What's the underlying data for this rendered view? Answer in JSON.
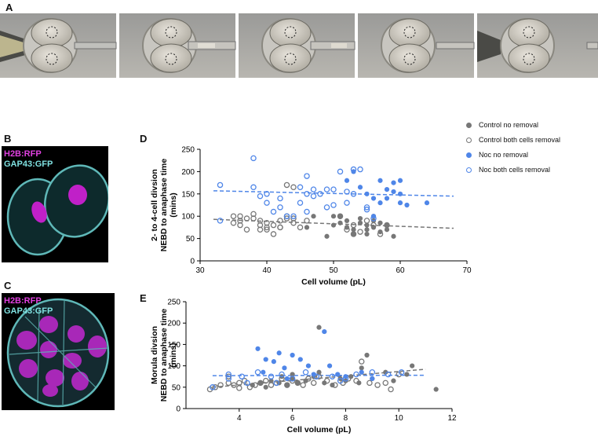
{
  "panels": {
    "A": "A",
    "B": "B",
    "C": "C",
    "D": "D",
    "E": "E"
  },
  "micrographs": {
    "B": {
      "label1": "H2B:RFP",
      "label2": "GAP43:GFP",
      "color1": "#e040e0",
      "color2": "#7fe0e0"
    },
    "C": {
      "label1": "H2B:RFP",
      "label2": "GAP43:GFP",
      "color1": "#e040e0",
      "color2": "#7fe0e0"
    }
  },
  "legend": [
    {
      "label": "Control no removal",
      "color": "#777777",
      "filled": true
    },
    {
      "label": "Control both cells removal",
      "color": "#777777",
      "filled": false
    },
    {
      "label": "Noc no removal",
      "color": "#4f86e8",
      "filled": true
    },
    {
      "label": "Noc both cells removal",
      "color": "#4f86e8",
      "filled": false
    }
  ],
  "chart_data": [
    {
      "type": "scatter",
      "panel": "D",
      "xlabel": "Cell volume (pL)",
      "ylabel": "2- to 4-cell divsion NEBD to anaphase time (mins)",
      "ylabel_lines": [
        "2- to 4-cell divsion",
        "NEBD to anaphase time",
        "(mins)"
      ],
      "xlim": [
        30,
        70
      ],
      "ylim": [
        0,
        250
      ],
      "xticks": [
        30,
        40,
        50,
        60,
        70
      ],
      "yticks": [
        0,
        50,
        100,
        150,
        200,
        250
      ],
      "series": [
        {
          "name": "Control no removal",
          "color": "#777777",
          "filled": true,
          "points": [
            [
              46,
              75
            ],
            [
              47,
              100
            ],
            [
              49,
              55
            ],
            [
              50,
              80
            ],
            [
              50,
              100
            ],
            [
              51,
              85
            ],
            [
              51,
              100
            ],
            [
              52,
              75
            ],
            [
              52,
              90
            ],
            [
              53,
              70
            ],
            [
              53,
              60
            ],
            [
              54,
              85
            ],
            [
              54,
              95
            ],
            [
              55,
              70
            ],
            [
              55,
              80
            ],
            [
              55,
              60
            ],
            [
              56,
              75
            ],
            [
              56,
              90
            ],
            [
              57,
              85
            ],
            [
              57,
              65
            ],
            [
              58,
              80
            ],
            [
              58,
              70
            ],
            [
              59,
              55
            ],
            [
              56,
              100
            ]
          ]
        },
        {
          "name": "Control both cells removal",
          "color": "#777777",
          "filled": false,
          "points": [
            [
              35,
              100
            ],
            [
              35,
              85
            ],
            [
              36,
              100
            ],
            [
              36,
              90
            ],
            [
              36,
              80
            ],
            [
              37,
              95
            ],
            [
              37,
              70
            ],
            [
              38,
              95
            ],
            [
              38,
              105
            ],
            [
              39,
              90
            ],
            [
              39,
              80
            ],
            [
              39,
              70
            ],
            [
              40,
              75
            ],
            [
              40,
              85
            ],
            [
              40,
              70
            ],
            [
              41,
              80
            ],
            [
              41,
              60
            ],
            [
              42,
              75
            ],
            [
              42,
              90
            ],
            [
              42,
              75
            ],
            [
              43,
              95
            ],
            [
              43,
              100
            ],
            [
              44,
              95
            ],
            [
              44,
              165
            ],
            [
              44,
              85
            ],
            [
              45,
              75
            ],
            [
              46,
              90
            ],
            [
              51,
              100
            ],
            [
              52,
              70
            ],
            [
              53,
              80
            ],
            [
              53,
              60
            ],
            [
              54,
              65
            ],
            [
              55,
              90
            ],
            [
              56,
              80
            ],
            [
              57,
              60
            ],
            [
              58,
              80
            ],
            [
              43,
              170
            ]
          ]
        },
        {
          "name": "Noc no removal",
          "color": "#4f86e8",
          "filled": true,
          "points": [
            [
              52,
              180
            ],
            [
              54,
              165
            ],
            [
              55,
              150
            ],
            [
              56,
              140
            ],
            [
              57,
              180
            ],
            [
              57,
              130
            ],
            [
              58,
              160
            ],
            [
              58,
              140
            ],
            [
              59,
              175
            ],
            [
              59,
              155
            ],
            [
              60,
              150
            ],
            [
              60,
              130
            ],
            [
              60,
              180
            ],
            [
              61,
              125
            ],
            [
              53,
              200
            ],
            [
              56,
              100
            ],
            [
              64,
              130
            ]
          ]
        },
        {
          "name": "Noc both cells removal",
          "color": "#4f86e8",
          "filled": false,
          "points": [
            [
              33,
              170
            ],
            [
              33,
              90
            ],
            [
              38,
              230
            ],
            [
              38,
              165
            ],
            [
              39,
              145
            ],
            [
              40,
              150
            ],
            [
              40,
              130
            ],
            [
              41,
              110
            ],
            [
              42,
              140
            ],
            [
              42,
              120
            ],
            [
              43,
              100
            ],
            [
              44,
              100
            ],
            [
              45,
              130
            ],
            [
              45,
              165
            ],
            [
              46,
              150
            ],
            [
              46,
              190
            ],
            [
              47,
              160
            ],
            [
              47,
              145
            ],
            [
              48,
              150
            ],
            [
              49,
              120
            ],
            [
              49,
              160
            ],
            [
              50,
              160
            ],
            [
              50,
              125
            ],
            [
              51,
              200
            ],
            [
              52,
              155
            ],
            [
              52,
              130
            ],
            [
              53,
              150
            ],
            [
              53,
              205
            ],
            [
              54,
              205
            ],
            [
              55,
              120
            ],
            [
              55,
              115
            ],
            [
              56,
              95
            ],
            [
              46,
              110
            ]
          ]
        }
      ],
      "trendlines": [
        {
          "color": "#4f86e8",
          "x": [
            32,
            68
          ],
          "y": [
            157,
            145
          ]
        },
        {
          "color": "#777777",
          "x": [
            32,
            68
          ],
          "y": [
            93,
            73
          ]
        }
      ]
    },
    {
      "type": "scatter",
      "panel": "E",
      "xlabel": "Cell volume (pL)",
      "ylabel": "Morula divsion NEBD to anaphase time (mins)",
      "ylabel_lines": [
        "Morula divsion",
        "NEBD to anaphase time",
        "(mins)"
      ],
      "xlim": [
        2,
        12
      ],
      "ylim": [
        0,
        250
      ],
      "xticks": [
        4,
        6,
        8,
        10,
        12
      ],
      "yticks": [
        0,
        50,
        100,
        150,
        200,
        250
      ],
      "series": [
        {
          "name": "Control no removal",
          "color": "#777777",
          "filled": true,
          "points": [
            [
              4.5,
              55
            ],
            [
              4.8,
              60
            ],
            [
              5,
              50
            ],
            [
              5.2,
              65
            ],
            [
              5.5,
              60
            ],
            [
              5.8,
              55
            ],
            [
              6,
              70
            ],
            [
              6.2,
              60
            ],
            [
              6.5,
              65
            ],
            [
              6.8,
              75
            ],
            [
              7,
              190
            ],
            [
              7,
              85
            ],
            [
              7.2,
              60
            ],
            [
              7.5,
              55
            ],
            [
              7.8,
              70
            ],
            [
              8,
              65
            ],
            [
              8.2,
              75
            ],
            [
              8.5,
              60
            ],
            [
              8.8,
              125
            ],
            [
              9,
              70
            ],
            [
              9.5,
              85
            ],
            [
              9.8,
              65
            ],
            [
              10.3,
              80
            ],
            [
              10.5,
              100
            ],
            [
              11.4,
              45
            ],
            [
              6,
              80
            ],
            [
              5.6,
              75
            ],
            [
              8.6,
              95
            ]
          ]
        },
        {
          "name": "Control both cells removal",
          "color": "#777777",
          "filled": false,
          "points": [
            [
              2.9,
              45
            ],
            [
              3.1,
              50
            ],
            [
              3.3,
              55
            ],
            [
              3.6,
              60
            ],
            [
              3.8,
              55
            ],
            [
              4,
              60
            ],
            [
              4.2,
              65
            ],
            [
              4.4,
              50
            ],
            [
              4.6,
              55
            ],
            [
              4.8,
              60
            ],
            [
              5,
              65
            ],
            [
              5.2,
              55
            ],
            [
              5.4,
              60
            ],
            [
              5.6,
              70
            ],
            [
              5.8,
              55
            ],
            [
              6,
              65
            ],
            [
              6.2,
              60
            ],
            [
              6.4,
              55
            ],
            [
              6.6,
              70
            ],
            [
              6.8,
              60
            ],
            [
              7,
              75
            ],
            [
              7.3,
              65
            ],
            [
              7.6,
              55
            ],
            [
              7.9,
              60
            ],
            [
              8.1,
              70
            ],
            [
              8.4,
              65
            ],
            [
              8.6,
              110
            ],
            [
              8.9,
              60
            ],
            [
              9.2,
              55
            ],
            [
              9.5,
              60
            ],
            [
              9.7,
              45
            ],
            [
              10,
              80
            ],
            [
              3.6,
              75
            ],
            [
              4,
              48
            ]
          ]
        },
        {
          "name": "Noc no removal",
          "color": "#4f86e8",
          "filled": true,
          "points": [
            [
              4.7,
              140
            ],
            [
              5,
              115
            ],
            [
              5.3,
              110
            ],
            [
              5.5,
              130
            ],
            [
              5.7,
              95
            ],
            [
              6,
              125
            ],
            [
              6.3,
              115
            ],
            [
              6.6,
              100
            ],
            [
              7.2,
              180
            ],
            [
              7.4,
              100
            ],
            [
              7.7,
              80
            ],
            [
              8,
              75
            ],
            [
              8.6,
              85
            ],
            [
              9,
              70
            ],
            [
              4.9,
              85
            ],
            [
              5.8,
              70
            ],
            [
              6.8,
              80
            ]
          ]
        },
        {
          "name": "Noc both cells removal",
          "color": "#4f86e8",
          "filled": false,
          "points": [
            [
              3,
              50
            ],
            [
              3.6,
              70
            ],
            [
              3.6,
              80
            ],
            [
              4.1,
              75
            ],
            [
              4.3,
              60
            ],
            [
              4.7,
              85
            ],
            [
              5.2,
              75
            ],
            [
              5.6,
              80
            ],
            [
              6,
              70
            ],
            [
              6.5,
              85
            ],
            [
              6.9,
              75
            ],
            [
              7.5,
              75
            ],
            [
              8,
              70
            ],
            [
              8.4,
              80
            ],
            [
              9,
              85
            ],
            [
              9.6,
              80
            ],
            [
              10.1,
              85
            ],
            [
              5.4,
              60
            ],
            [
              7.8,
              65
            ]
          ]
        }
      ],
      "trendlines": [
        {
          "color": "#4f86e8",
          "x": [
            3,
            11
          ],
          "y": [
            77,
            78
          ]
        },
        {
          "color": "#777777",
          "x": [
            3,
            11
          ],
          "y": [
            50,
            92
          ]
        }
      ]
    }
  ]
}
